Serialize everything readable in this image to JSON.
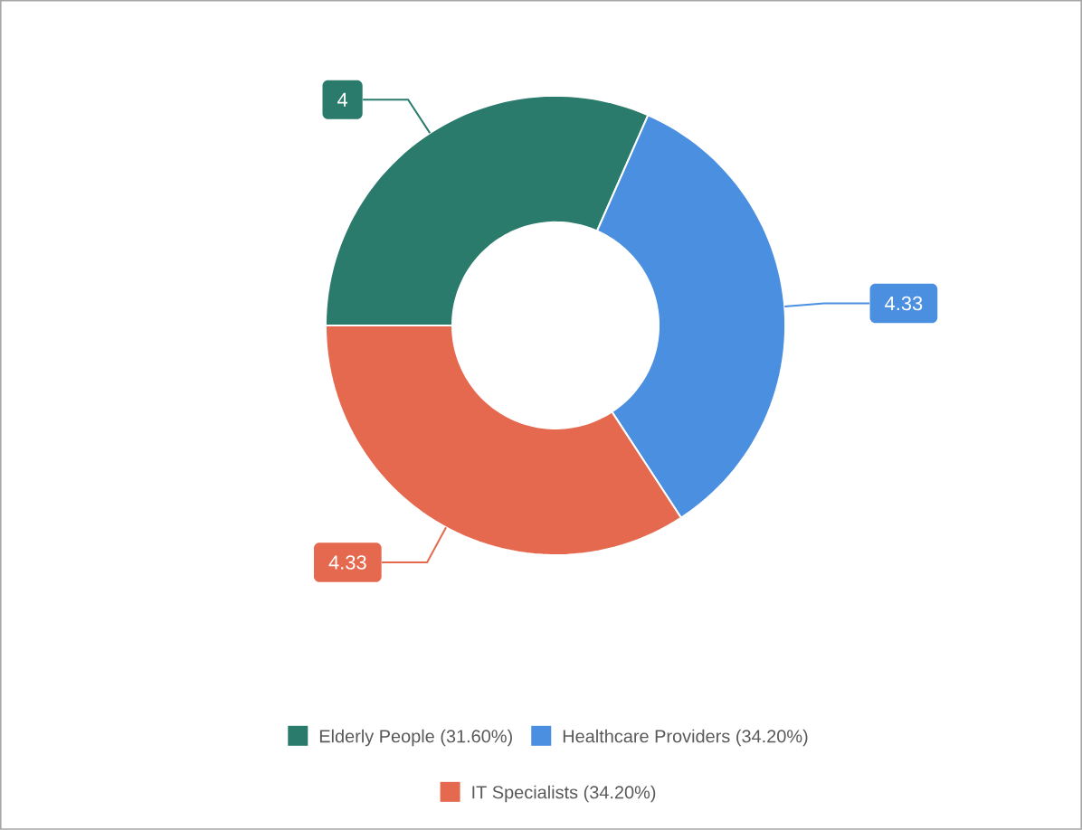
{
  "chart_data": {
    "type": "donut",
    "categories": [
      "Elderly People (31.60%)",
      "Healthcare Providers (34.20%)",
      "IT Specialists (34.20%)"
    ],
    "values": [
      4,
      4.33,
      4.33
    ],
    "colors": [
      "#2a7b6b",
      "#4a8fe0",
      "#e5694e"
    ],
    "data_labels": true,
    "legend": "bottom"
  }
}
